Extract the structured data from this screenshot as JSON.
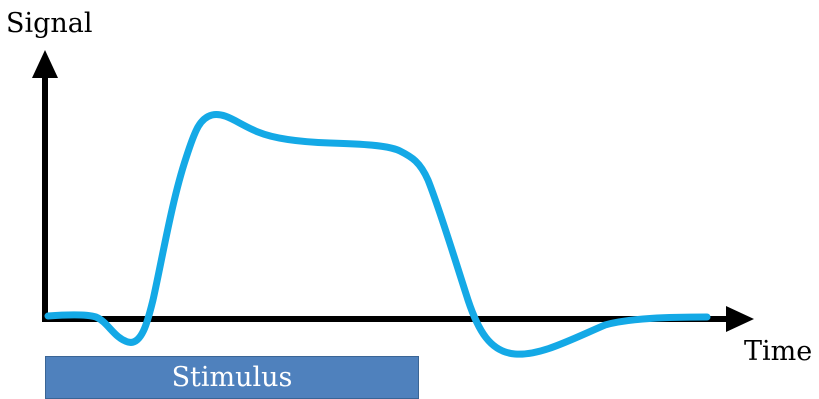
{
  "labels": {
    "y_axis": "Signal",
    "x_axis": "Time",
    "stimulus": "Stimulus"
  },
  "colors": {
    "axis": "#000000",
    "signal": "#14a9e6",
    "stimulus_fill": "#4f81bd",
    "stimulus_text": "#ffffff"
  },
  "signal_curve": {
    "description_type": "response waveform",
    "shape": [
      "baseline",
      "small dip",
      "sharp rise",
      "peak",
      "plateau",
      "fall",
      "undershoot",
      "return to baseline"
    ]
  }
}
